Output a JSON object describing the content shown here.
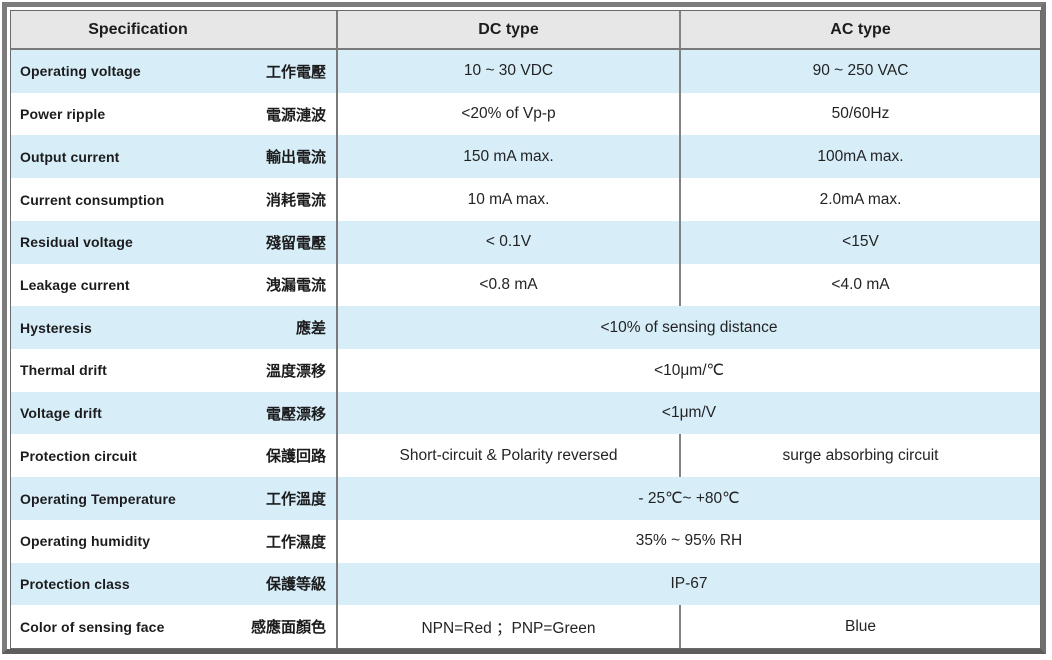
{
  "table": {
    "header": {
      "spec": "Specification",
      "dc": "DC type",
      "ac": "AC type"
    },
    "rows": [
      {
        "en": "Operating voltage",
        "zh": "工作電壓",
        "dc": "10 ~ 30 VDC",
        "ac": "90 ~ 250 VAC"
      },
      {
        "en": "Power ripple",
        "zh": "電源漣波",
        "dc": "<20% of Vp-p",
        "ac": "50/60Hz"
      },
      {
        "en": "Output current",
        "zh": "輸出電流",
        "dc": "150 mA max.",
        "ac": "100mA max."
      },
      {
        "en": "Current consumption",
        "zh": "消耗電流",
        "dc": "10 mA max.",
        "ac": "2.0mA max."
      },
      {
        "en": "Residual voltage",
        "zh": "殘留電壓",
        "dc": "< 0.1V",
        "ac": "<15V"
      },
      {
        "en": "Leakage current",
        "zh": "洩漏電流",
        "dc": "<0.8 mA",
        "ac": "<4.0 mA"
      },
      {
        "en": "Hysteresis",
        "zh": "應差",
        "span": "<10% of sensing distance"
      },
      {
        "en": "Thermal drift",
        "zh": "溫度漂移",
        "span": "<10μm/℃"
      },
      {
        "en": "Voltage drift",
        "zh": "電壓漂移",
        "span": "<1μm/V"
      },
      {
        "en": "Protection circuit",
        "zh": "保護回路",
        "dc": "Short-circuit & Polarity reversed",
        "ac": "surge absorbing circuit"
      },
      {
        "en": "Operating Temperature",
        "zh": "工作溫度",
        "span": "- 25℃~ +80℃"
      },
      {
        "en": "Operating humidity",
        "zh": "工作濕度",
        "span": "35% ~ 95% RH"
      },
      {
        "en": "Protection class",
        "zh": "保護等級",
        "span": "IP-67"
      },
      {
        "en": "Color of sensing face",
        "zh": "感應面顏色",
        "dc": "NPN=Red ；PNP=Green",
        "ac": "Blue"
      }
    ],
    "colors": {
      "row_alt_blue": "#d7eef8",
      "header_bg": "#e7e7e7",
      "frame_gray": "#7b7b7b",
      "divider_gray": "#7a7a7a",
      "text": "#1c1c1e"
    }
  }
}
